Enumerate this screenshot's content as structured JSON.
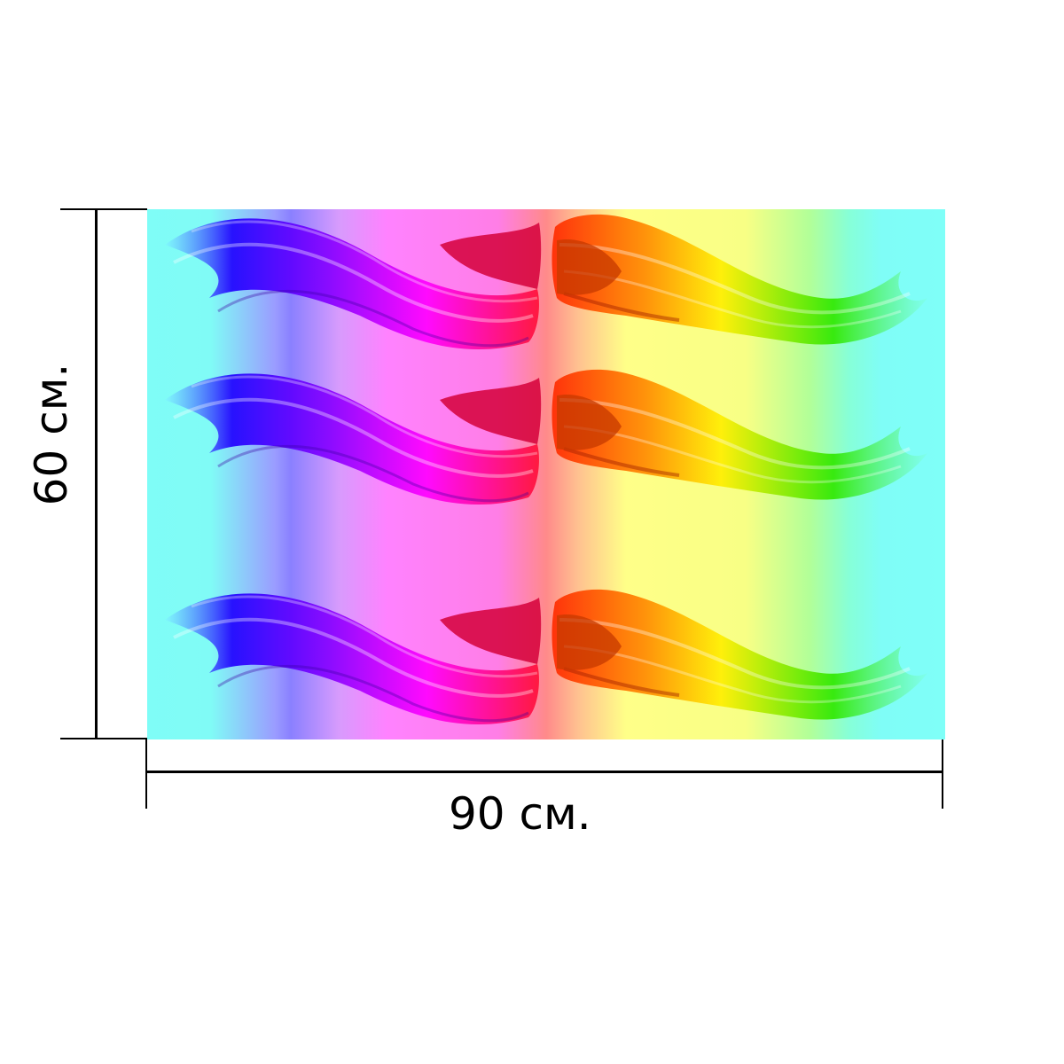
{
  "dimensions": {
    "width_label": "90 см.",
    "height_label": "60 см."
  },
  "product": {
    "pattern": "rainbow-wings",
    "wing_rows": 3,
    "background_colors": [
      "#7ffdf7",
      "#8a80ff",
      "#ff82ff",
      "#ff8a8a",
      "#ffff88",
      "#86ffd8"
    ],
    "wing_colors": {
      "blue": "#1f00ff",
      "violet": "#8a00ff",
      "magenta": "#ff00ff",
      "red": "#ff1037",
      "orange": "#ff4a00",
      "yellow": "#ffee00",
      "green": "#2fe800"
    }
  }
}
